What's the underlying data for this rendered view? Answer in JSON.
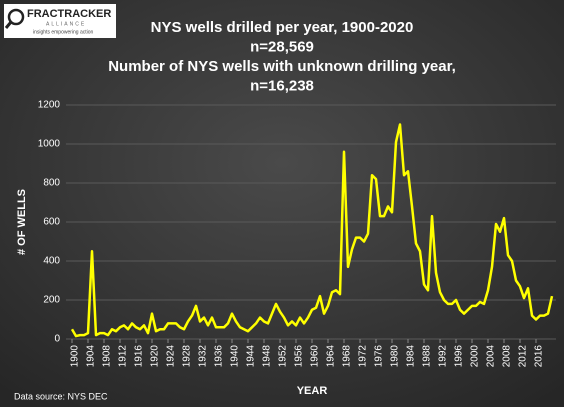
{
  "logo": {
    "name": "FRACTRACKER",
    "sub": "ALLIANCE",
    "tagline": "insights empowering action"
  },
  "chart_data": {
    "type": "line",
    "title": [
      "NYS wells drilled per year, 1900-2020",
      "n=28,569",
      "Number of NYS wells with unknown drilling year,",
      "n=16,238"
    ],
    "x_label": "YEAR",
    "y_label": "# OF WELLS",
    "source": "Data source: NYS DEC",
    "x": [
      1900,
      1901,
      1902,
      1903,
      1904,
      1905,
      1906,
      1907,
      1908,
      1909,
      1910,
      1911,
      1912,
      1913,
      1914,
      1915,
      1916,
      1917,
      1918,
      1919,
      1920,
      1921,
      1922,
      1923,
      1924,
      1925,
      1926,
      1927,
      1928,
      1929,
      1930,
      1931,
      1932,
      1933,
      1934,
      1935,
      1936,
      1937,
      1938,
      1939,
      1940,
      1941,
      1942,
      1943,
      1944,
      1945,
      1946,
      1947,
      1948,
      1949,
      1950,
      1951,
      1952,
      1953,
      1954,
      1955,
      1956,
      1957,
      1958,
      1959,
      1960,
      1961,
      1962,
      1963,
      1964,
      1965,
      1966,
      1967,
      1968,
      1969,
      1970,
      1971,
      1972,
      1973,
      1974,
      1975,
      1976,
      1977,
      1978,
      1979,
      1980,
      1981,
      1982,
      1983,
      1984,
      1985,
      1986,
      1987,
      1988,
      1989,
      1990,
      1991,
      1992,
      1993,
      1994,
      1995,
      1996,
      1997,
      1998,
      1999,
      2000,
      2001,
      2002,
      2003,
      2004,
      2005,
      2006,
      2007,
      2008,
      2009,
      2010,
      2011,
      2012,
      2013,
      2014,
      2015,
      2016,
      2017,
      2018,
      2019,
      2020
    ],
    "series": [
      {
        "name": "Wells drilled",
        "color": "#ffff00",
        "values": [
          50,
          15,
          20,
          20,
          30,
          450,
          20,
          30,
          30,
          20,
          50,
          40,
          60,
          70,
          50,
          80,
          60,
          50,
          70,
          30,
          130,
          40,
          50,
          50,
          80,
          80,
          80,
          60,
          50,
          90,
          120,
          170,
          90,
          110,
          70,
          110,
          60,
          60,
          60,
          80,
          130,
          90,
          60,
          50,
          40,
          60,
          80,
          110,
          90,
          80,
          130,
          180,
          140,
          110,
          70,
          90,
          70,
          110,
          80,
          110,
          150,
          160,
          220,
          130,
          170,
          240,
          250,
          230,
          960,
          370,
          460,
          520,
          520,
          500,
          540,
          840,
          820,
          630,
          630,
          680,
          650,
          1010,
          1100,
          840,
          860,
          680,
          490,
          450,
          280,
          250,
          630,
          340,
          240,
          200,
          180,
          180,
          200,
          150,
          130,
          150,
          170,
          170,
          190,
          180,
          250,
          370,
          590,
          550,
          620,
          430,
          400,
          300,
          270,
          210,
          260,
          120,
          100,
          120,
          120,
          130,
          220
        ]
      }
    ],
    "xlim": [
      1900,
      2020
    ],
    "xticks": [
      1900,
      1904,
      1908,
      1912,
      1916,
      1920,
      1924,
      1928,
      1932,
      1936,
      1940,
      1944,
      1948,
      1952,
      1956,
      1960,
      1964,
      1968,
      1972,
      1976,
      1980,
      1984,
      1988,
      1992,
      1996,
      2000,
      2004,
      2008,
      2012,
      2016
    ],
    "ylim": [
      0,
      1200
    ],
    "yticks": [
      0,
      200,
      400,
      600,
      800,
      1000,
      1200
    ],
    "grid": true
  }
}
